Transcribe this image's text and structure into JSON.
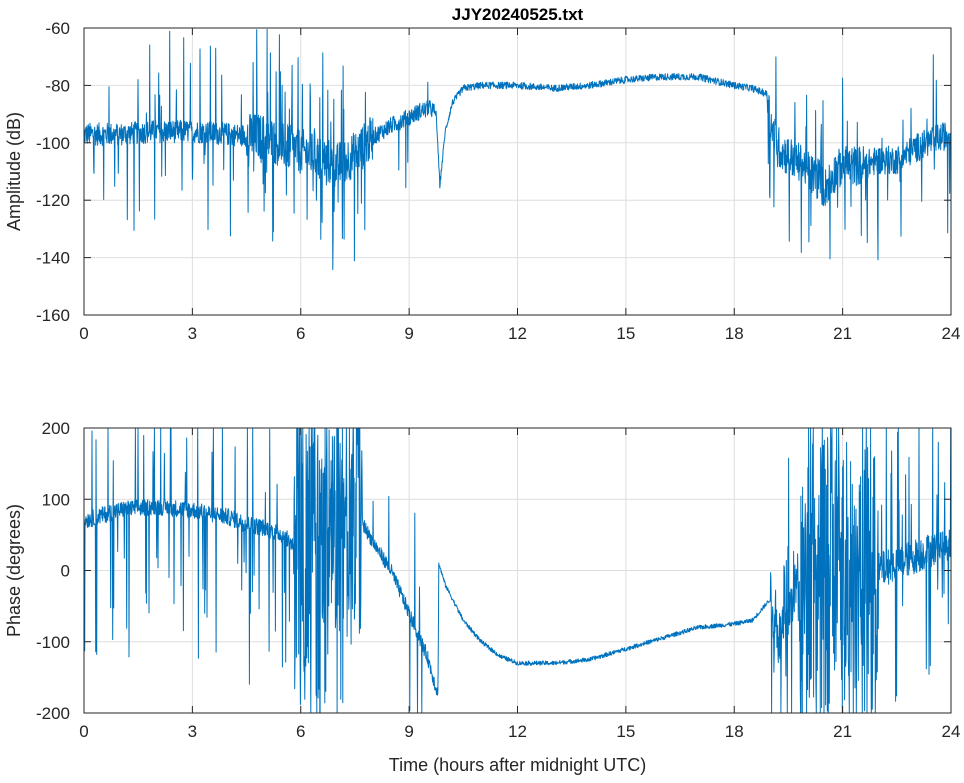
{
  "chart_data": [
    {
      "type": "line",
      "title": "JJY20240525.txt",
      "xlabel": "",
      "ylabel": "Amplitude (dB)",
      "xlim": [
        0,
        24
      ],
      "ylim": [
        -160,
        -60
      ],
      "grid": true,
      "xticks": [
        "0",
        "3",
        "6",
        "9",
        "12",
        "15",
        "18",
        "21",
        "24"
      ],
      "yticks": [
        "-60",
        "-80",
        "-100",
        "-120",
        "-140",
        "-160"
      ],
      "series": [
        {
          "name": "Amplitude",
          "color": "#0072BD",
          "baseline": {
            "x": [
              0,
              1,
              2,
              3,
              4,
              5,
              5.5,
              6,
              6.5,
              7,
              7.5,
              8,
              8.5,
              9,
              9.3,
              9.6,
              9.75,
              9.85,
              10,
              10.2,
              10.5,
              11,
              12,
              13,
              14,
              15,
              16,
              17,
              18,
              18.5,
              18.9,
              19.05,
              19.3,
              19.7,
              20,
              20.3,
              20.5,
              20.8,
              21,
              21.5,
              22,
              22.5,
              23,
              23.5,
              24
            ],
            "y": [
              -97,
              -97,
              -96,
              -96,
              -97,
              -98,
              -101,
              -103,
              -105,
              -108,
              -104,
              -98,
              -94,
              -91,
              -89,
              -88,
              -90,
              -115,
              -96,
              -86,
              -81,
              -80,
              -80,
              -81,
              -80,
              -78,
              -77,
              -77,
              -80,
              -81,
              -83,
              -96,
              -103,
              -106,
              -109,
              -113,
              -116,
              -110,
              -108,
              -108,
              -106,
              -106,
              -102,
              -99,
              -97
            ]
          },
          "noise": [
            {
              "x": [
                0,
                4.5
              ],
              "amp": 4,
              "spikes": 0.07
            },
            {
              "x": [
                4.5,
                8
              ],
              "amp": 8,
              "spikes": 0.12
            },
            {
              "x": [
                8,
                9.7
              ],
              "amp": 3,
              "spikes": 0.02
            },
            {
              "x": [
                9.7,
                18.9
              ],
              "amp": 1.2,
              "spikes": 0
            },
            {
              "x": [
                18.9,
                21.6
              ],
              "amp": 7,
              "spikes": 0.08
            },
            {
              "x": [
                21.6,
                24
              ],
              "amp": 5,
              "spikes": 0.06
            }
          ]
        }
      ]
    },
    {
      "type": "line",
      "title": "",
      "xlabel": "Time (hours after midnight UTC)",
      "ylabel": "Phase (degrees)",
      "xlim": [
        0,
        24
      ],
      "ylim": [
        -200,
        200
      ],
      "grid": true,
      "xticks": [
        "0",
        "3",
        "6",
        "9",
        "12",
        "15",
        "18",
        "21",
        "24"
      ],
      "yticks": [
        "200",
        "100",
        "0",
        "-100",
        "-200"
      ],
      "series": [
        {
          "name": "Phase",
          "color": "#0072BD",
          "baseline": {
            "x": [
              0,
              1,
              2,
              3,
              4,
              4.5,
              5,
              5.5,
              6,
              7,
              7.5,
              8,
              8.5,
              9,
              9.5,
              9.8,
              9.82,
              10,
              10.5,
              11,
              11.5,
              12,
              13,
              14,
              15,
              16,
              17,
              18,
              18.5,
              19,
              19.3,
              19.7,
              20,
              21,
              22,
              23,
              24
            ],
            "y": [
              70,
              85,
              90,
              85,
              75,
              65,
              60,
              50,
              25,
              60,
              85,
              40,
              0,
              -60,
              -120,
              -175,
              10,
              -20,
              -70,
              -100,
              -120,
              -130,
              -130,
              -125,
              -110,
              -95,
              -80,
              -75,
              -70,
              -40,
              -100,
              -20,
              20,
              10,
              0,
              20,
              40
            ]
          },
          "noise": [
            {
              "x": [
                0,
                5.8
              ],
              "amp": 12,
              "spikes": 0.1
            },
            {
              "x": [
                5.8,
                7.7
              ],
              "amp": 170,
              "spikes": 0.5
            },
            {
              "x": [
                7.7,
                9.8
              ],
              "amp": 10,
              "spikes": 0.03
            },
            {
              "x": [
                9.8,
                19
              ],
              "amp": 3,
              "spikes": 0
            },
            {
              "x": [
                19,
                19.8
              ],
              "amp": 40,
              "spikes": 0.2
            },
            {
              "x": [
                19.8,
                22
              ],
              "amp": 170,
              "spikes": 0.5
            },
            {
              "x": [
                22,
                24
              ],
              "amp": 25,
              "spikes": 0.12
            }
          ]
        }
      ]
    }
  ]
}
